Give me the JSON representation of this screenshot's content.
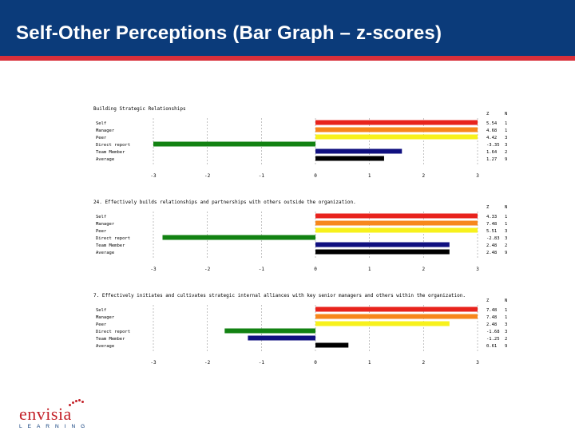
{
  "header": {
    "title": "Self-Other Perceptions (Bar Graph – z-scores)"
  },
  "logo": {
    "name": "envisia",
    "sub": "LEARNING"
  },
  "colors": {
    "header_bg": "#0b3b7a",
    "accent_red": "#d9303a"
  },
  "chart_data": [
    {
      "type": "bar",
      "orientation": "horizontal",
      "title": "Building Strategic Relationships",
      "col_headers": [
        "Z",
        "N"
      ],
      "categories": [
        "Self",
        "Manager",
        "Peer",
        "Direct report",
        "Team Member",
        "Average"
      ],
      "values": [
        3.0,
        3.0,
        3.0,
        -3.0,
        1.6,
        1.27
      ],
      "z_labels": [
        "5.54",
        "4.68",
        "4.42",
        "-3.35",
        "1.64",
        "1.27"
      ],
      "n_labels": [
        "1",
        "1",
        "3",
        "3",
        "2",
        "9"
      ],
      "colors": [
        "#e8231d",
        "#f7871c",
        "#f7f11c",
        "#128212",
        "#101080",
        "#000000"
      ],
      "xlim": [
        -3,
        3
      ],
      "xticks": [
        "-3",
        "-2",
        "-1",
        "0",
        "1",
        "2",
        "3"
      ],
      "grid": true
    },
    {
      "type": "bar",
      "orientation": "horizontal",
      "title": "24. Effectively builds relationships and partnerships with others outside the organization.",
      "col_headers": [
        "Z",
        "N"
      ],
      "categories": [
        "Self",
        "Manager",
        "Peer",
        "Direct report",
        "Team Member",
        "Average"
      ],
      "values": [
        3.0,
        3.0,
        3.0,
        -2.83,
        2.48,
        2.48
      ],
      "z_labels": [
        "4.33",
        "7.48",
        "5.51",
        "-2.83",
        "2.48",
        "2.48"
      ],
      "n_labels": [
        "1",
        "1",
        "3",
        "3",
        "2",
        "9"
      ],
      "colors": [
        "#e8231d",
        "#f7871c",
        "#f7f11c",
        "#128212",
        "#101080",
        "#000000"
      ],
      "xlim": [
        -3,
        3
      ],
      "xticks": [
        "-3",
        "-2",
        "-1",
        "0",
        "1",
        "2",
        "3"
      ],
      "grid": true
    },
    {
      "type": "bar",
      "orientation": "horizontal",
      "title": "7. Effectively initiates and cultivates strategic internal alliances with key senior managers and others within the organization.",
      "col_headers": [
        "Z",
        "N"
      ],
      "categories": [
        "Self",
        "Manager",
        "Peer",
        "Direct report",
        "Team Member",
        "Average"
      ],
      "values": [
        3.0,
        3.0,
        2.48,
        -1.68,
        -1.25,
        0.61
      ],
      "z_labels": [
        "7.48",
        "7.48",
        "2.48",
        "-1.68",
        "-1.25",
        "0.61"
      ],
      "n_labels": [
        "1",
        "1",
        "3",
        "3",
        "2",
        "9"
      ],
      "colors": [
        "#e8231d",
        "#f7871c",
        "#f7f11c",
        "#128212",
        "#101080",
        "#000000"
      ],
      "xlim": [
        -3,
        3
      ],
      "xticks": [
        "-3",
        "-2",
        "-1",
        "0",
        "1",
        "2",
        "3"
      ],
      "grid": true
    }
  ]
}
